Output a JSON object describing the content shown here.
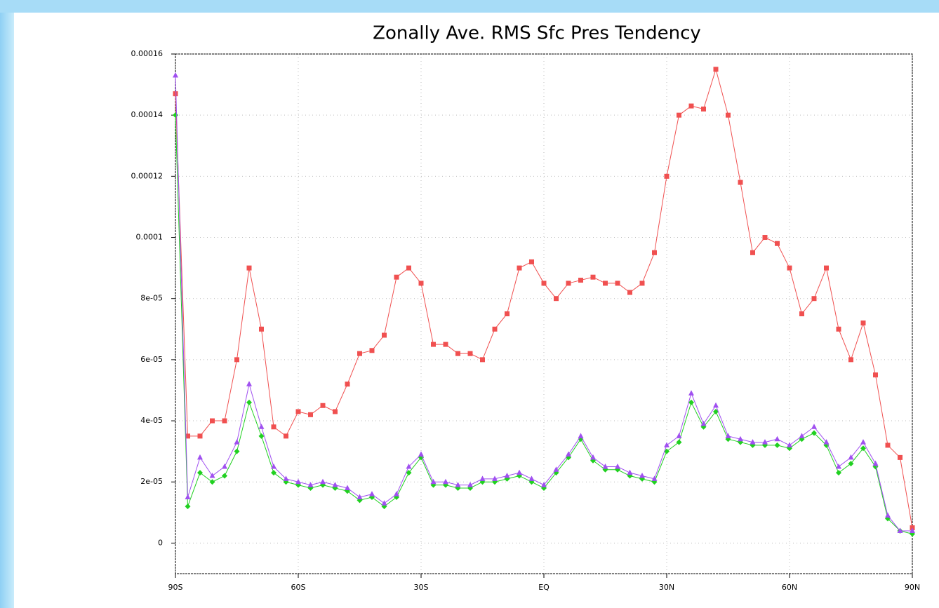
{
  "chart_data": {
    "type": "line",
    "title": "Zonally Ave. RMS Sfc Pres Tendency",
    "x": [
      -90,
      -87,
      -84,
      -81,
      -78,
      -75,
      -72,
      -69,
      -66,
      -63,
      -60,
      -57,
      -54,
      -51,
      -48,
      -45,
      -42,
      -39,
      -36,
      -33,
      -30,
      -27,
      -24,
      -21,
      -18,
      -15,
      -12,
      -9,
      -6,
      -3,
      0,
      3,
      6,
      9,
      12,
      15,
      18,
      21,
      24,
      27,
      30,
      33,
      36,
      39,
      42,
      45,
      48,
      51,
      54,
      57,
      60,
      63,
      66,
      69,
      72,
      75,
      78,
      81,
      84,
      87,
      90
    ],
    "series": [
      {
        "color": "#f05050",
        "marker": "square",
        "values": [
          0.000147,
          3.5e-05,
          3.5e-05,
          4e-05,
          4e-05,
          6e-05,
          9e-05,
          7e-05,
          3.8e-05,
          3.5e-05,
          4.3e-05,
          4.2e-05,
          4.5e-05,
          4.3e-05,
          5.2e-05,
          6.2e-05,
          6.3e-05,
          6.8e-05,
          8.7e-05,
          9e-05,
          8.5e-05,
          6.5e-05,
          6.5e-05,
          6.2e-05,
          6.2e-05,
          6e-05,
          7e-05,
          7.5e-05,
          9e-05,
          9.2e-05,
          8.5e-05,
          8e-05,
          8.5e-05,
          8.6e-05,
          8.7e-05,
          8.5e-05,
          8.5e-05,
          8.2e-05,
          8.5e-05,
          9.5e-05,
          0.00012,
          0.00014,
          0.000143,
          0.000142,
          0.000155,
          0.00014,
          0.000118,
          9.5e-05,
          0.0001,
          9.8e-05,
          9e-05,
          7.5e-05,
          8e-05,
          9e-05,
          7e-05,
          6e-05,
          7.2e-05,
          5.5e-05,
          3.2e-05,
          2.8e-05,
          5e-06
        ]
      },
      {
        "color": "#20d020",
        "marker": "diamond",
        "values": [
          0.00014,
          1.2e-05,
          2.3e-05,
          2e-05,
          2.2e-05,
          3e-05,
          4.6e-05,
          3.5e-05,
          2.3e-05,
          2e-05,
          1.9e-05,
          1.8e-05,
          1.9e-05,
          1.8e-05,
          1.7e-05,
          1.4e-05,
          1.5e-05,
          1.2e-05,
          1.5e-05,
          2.3e-05,
          2.8e-05,
          1.9e-05,
          1.9e-05,
          1.8e-05,
          1.8e-05,
          2e-05,
          2e-05,
          2.1e-05,
          2.2e-05,
          2e-05,
          1.8e-05,
          2.3e-05,
          2.8e-05,
          3.4e-05,
          2.7e-05,
          2.4e-05,
          2.4e-05,
          2.2e-05,
          2.1e-05,
          2e-05,
          3e-05,
          3.3e-05,
          4.6e-05,
          3.8e-05,
          4.3e-05,
          3.4e-05,
          3.3e-05,
          3.2e-05,
          3.2e-05,
          3.2e-05,
          3.1e-05,
          3.4e-05,
          3.6e-05,
          3.2e-05,
          2.3e-05,
          2.6e-05,
          3.1e-05,
          2.5e-05,
          8e-06,
          4e-06,
          3e-06
        ]
      },
      {
        "color": "#a050f0",
        "marker": "triangle",
        "values": [
          0.000153,
          1.5e-05,
          2.8e-05,
          2.2e-05,
          2.5e-05,
          3.3e-05,
          5.2e-05,
          3.8e-05,
          2.5e-05,
          2.1e-05,
          2e-05,
          1.9e-05,
          2e-05,
          1.9e-05,
          1.8e-05,
          1.5e-05,
          1.6e-05,
          1.3e-05,
          1.6e-05,
          2.5e-05,
          2.9e-05,
          2e-05,
          2e-05,
          1.9e-05,
          1.9e-05,
          2.1e-05,
          2.1e-05,
          2.2e-05,
          2.3e-05,
          2.1e-05,
          1.9e-05,
          2.4e-05,
          2.9e-05,
          3.5e-05,
          2.8e-05,
          2.5e-05,
          2.5e-05,
          2.3e-05,
          2.2e-05,
          2.1e-05,
          3.2e-05,
          3.5e-05,
          4.9e-05,
          3.9e-05,
          4.5e-05,
          3.5e-05,
          3.4e-05,
          3.3e-05,
          3.3e-05,
          3.4e-05,
          3.2e-05,
          3.5e-05,
          3.8e-05,
          3.3e-05,
          2.5e-05,
          2.8e-05,
          3.3e-05,
          2.6e-05,
          9e-06,
          4e-06,
          4e-06
        ]
      }
    ],
    "xlim": [
      -90,
      90
    ],
    "xticks": [
      {
        "value": -90,
        "label": "90S"
      },
      {
        "value": -60,
        "label": "60S"
      },
      {
        "value": -30,
        "label": "30S"
      },
      {
        "value": 0,
        "label": "EQ"
      },
      {
        "value": 30,
        "label": "30N"
      },
      {
        "value": 60,
        "label": "60N"
      },
      {
        "value": 90,
        "label": "90N"
      }
    ],
    "ylim": [
      -1e-05,
      0.00016
    ],
    "yticks": [
      0,
      {
        "value": 2e-05,
        "label": "2e-05"
      },
      {
        "value": 4e-05,
        "label": "4e-05"
      },
      {
        "value": 6e-05,
        "label": "6e-05"
      },
      {
        "value": 8e-05,
        "label": "8e-05"
      },
      0.0001,
      0.00012,
      0.00014,
      0.00016
    ],
    "grid": true
  }
}
